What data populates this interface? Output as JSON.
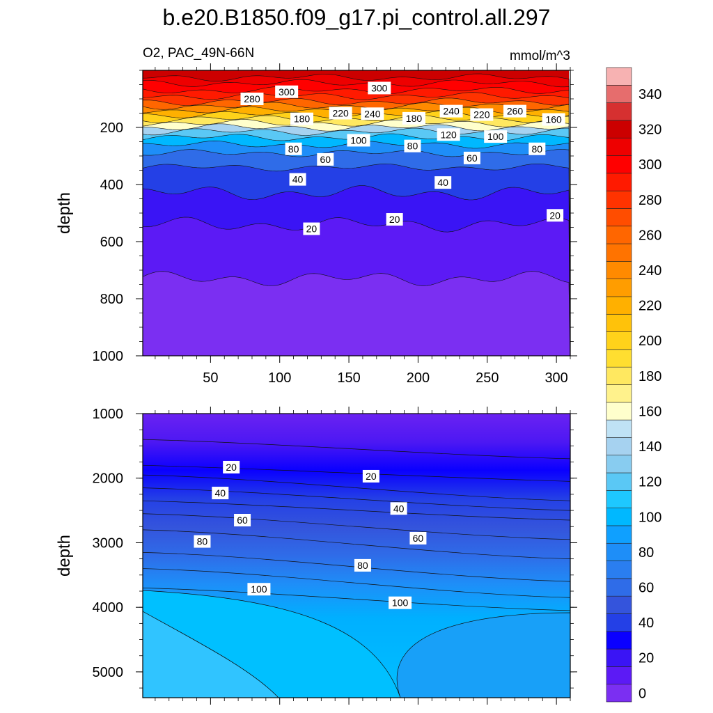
{
  "chart_data": {
    "type": "contour",
    "title": "b.e20.B1850.f09_g17.pi_control.all.297",
    "subtitle_left": "O2, PAC_49N-66N",
    "subtitle_right": "mmol/m^3",
    "x_tick_labels": [
      "50",
      "100",
      "150",
      "200",
      "250",
      "300"
    ],
    "x_ticks": [
      50,
      100,
      150,
      200,
      250,
      300
    ],
    "xlim": [
      1,
      310
    ],
    "panels": [
      {
        "name": "upper",
        "ylabel": "depth",
        "ylim": [
          0,
          1000
        ],
        "y_ticks": [
          200,
          400,
          600,
          800,
          1000
        ],
        "y_tick_labels": [
          "200",
          "400",
          "600",
          "800",
          "1000"
        ],
        "bands_from_top": [
          {
            "depth": 0,
            "value": 320
          },
          {
            "depth": 25,
            "value": 310
          },
          {
            "depth": 45,
            "value": 300
          },
          {
            "depth": 70,
            "value": 290
          },
          {
            "depth": 90,
            "value": 280
          },
          {
            "depth": 110,
            "value": 260
          },
          {
            "depth": 125,
            "value": 240
          },
          {
            "depth": 140,
            "value": 220
          },
          {
            "depth": 155,
            "value": 200
          },
          {
            "depth": 170,
            "value": 180
          },
          {
            "depth": 185,
            "value": 160
          },
          {
            "depth": 200,
            "value": 140
          },
          {
            "depth": 215,
            "value": 120
          },
          {
            "depth": 235,
            "value": 100
          },
          {
            "depth": 260,
            "value": 80
          },
          {
            "depth": 290,
            "value": 60
          },
          {
            "depth": 340,
            "value": 40
          },
          {
            "depth": 430,
            "value": 20
          },
          {
            "depth": 540,
            "value": 10
          },
          {
            "depth": 730,
            "value": 5
          }
        ],
        "contour_labels": [
          {
            "text": "280",
            "x": 80,
            "depth": 100
          },
          {
            "text": "300",
            "x": 105,
            "depth": 75
          },
          {
            "text": "300",
            "x": 172,
            "depth": 62
          },
          {
            "text": "180",
            "x": 116,
            "depth": 170
          },
          {
            "text": "220",
            "x": 144,
            "depth": 150
          },
          {
            "text": "240",
            "x": 167,
            "depth": 152
          },
          {
            "text": "180",
            "x": 197,
            "depth": 168
          },
          {
            "text": "240",
            "x": 224,
            "depth": 143
          },
          {
            "text": "220",
            "x": 246,
            "depth": 155
          },
          {
            "text": "260",
            "x": 270,
            "depth": 143
          },
          {
            "text": "160",
            "x": 298,
            "depth": 172
          },
          {
            "text": "120",
            "x": 222,
            "depth": 225
          },
          {
            "text": "100",
            "x": 157,
            "depth": 245
          },
          {
            "text": "100",
            "x": 256,
            "depth": 232
          },
          {
            "text": "80",
            "x": 110,
            "depth": 275
          },
          {
            "text": "80",
            "x": 196,
            "depth": 265
          },
          {
            "text": "80",
            "x": 286,
            "depth": 275
          },
          {
            "text": "60",
            "x": 133,
            "depth": 312
          },
          {
            "text": "60",
            "x": 239,
            "depth": 307
          },
          {
            "text": "40",
            "x": 113,
            "depth": 382
          },
          {
            "text": "40",
            "x": 218,
            "depth": 393
          },
          {
            "text": "20",
            "x": 123,
            "depth": 555
          },
          {
            "text": "20",
            "x": 183,
            "depth": 522
          },
          {
            "text": "20",
            "x": 299,
            "depth": 508
          }
        ]
      },
      {
        "name": "lower",
        "ylabel": "depth",
        "ylim": [
          1000,
          5400
        ],
        "y_ticks": [
          1000,
          2000,
          3000,
          4000,
          5000
        ],
        "y_tick_labels": [
          "1000",
          "2000",
          "3000",
          "4000",
          "5000"
        ],
        "contour_labels": [
          {
            "text": "20",
            "x": 65,
            "depth": 1830
          },
          {
            "text": "20",
            "x": 166,
            "depth": 1970
          },
          {
            "text": "40",
            "x": 57,
            "depth": 2230
          },
          {
            "text": "40",
            "x": 186,
            "depth": 2470
          },
          {
            "text": "60",
            "x": 73,
            "depth": 2650
          },
          {
            "text": "60",
            "x": 200,
            "depth": 2930
          },
          {
            "text": "80",
            "x": 44,
            "depth": 2980
          },
          {
            "text": "80",
            "x": 160,
            "depth": 3350
          },
          {
            "text": "100",
            "x": 85,
            "depth": 3720
          },
          {
            "text": "100",
            "x": 187,
            "depth": 3930
          }
        ]
      }
    ],
    "colorbar": {
      "levels": [
        0,
        10,
        20,
        30,
        40,
        50,
        60,
        70,
        80,
        90,
        100,
        110,
        120,
        130,
        140,
        150,
        160,
        170,
        180,
        190,
        200,
        210,
        220,
        230,
        240,
        250,
        260,
        270,
        280,
        290,
        300,
        310,
        320,
        330,
        340,
        350
      ],
      "labels": [
        "0",
        "20",
        "40",
        "60",
        "80",
        "100",
        "120",
        "140",
        "160",
        "180",
        "200",
        "220",
        "240",
        "260",
        "280",
        "300",
        "320",
        "340"
      ],
      "colors": [
        "#7b2ff2",
        "#5c1af5",
        "#3a14f5",
        "#0a00ff",
        "#2440e6",
        "#3454dc",
        "#2f6ce8",
        "#2a7ef0",
        "#1e8ef8",
        "#0fa0ff",
        "#00b8ff",
        "#1ec8ff",
        "#5ac8f5",
        "#88ccf0",
        "#a6d2f0",
        "#bfe2f5",
        "#ffffcc",
        "#fff28c",
        "#ffe860",
        "#ffde30",
        "#ffd21a",
        "#ffc20a",
        "#ffb000",
        "#ff9d00",
        "#ff8a00",
        "#ff7300",
        "#ff6600",
        "#ff4d00",
        "#ff3300",
        "#ff1a00",
        "#ff0000",
        "#ee0000",
        "#cc0000",
        "#d63030",
        "#e66d6d",
        "#f7b2b2"
      ]
    }
  }
}
